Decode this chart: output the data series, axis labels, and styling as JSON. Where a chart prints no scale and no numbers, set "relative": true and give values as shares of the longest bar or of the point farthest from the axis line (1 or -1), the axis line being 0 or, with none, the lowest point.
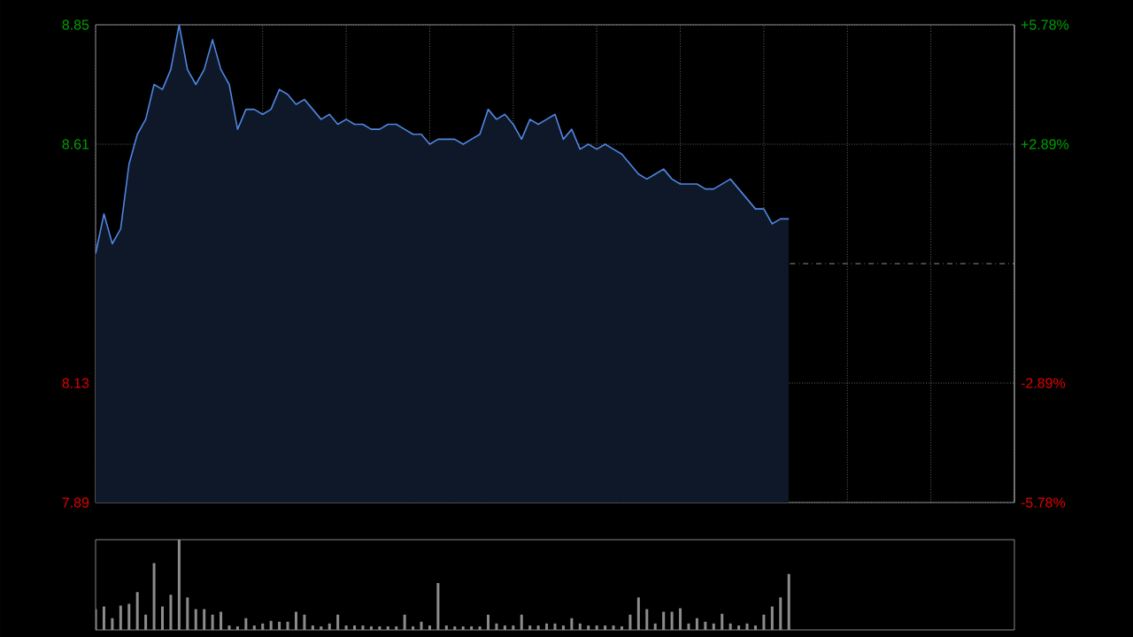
{
  "chart_data": [
    {
      "type": "area",
      "categories": [
        null,
        null,
        null,
        null,
        null,
        null,
        null,
        null,
        null,
        null,
        null,
        null,
        null,
        null,
        null,
        null,
        null,
        null,
        null,
        null,
        null,
        null,
        null,
        null,
        null,
        null,
        null,
        null,
        null,
        null,
        null,
        null,
        null,
        null,
        null,
        null,
        null,
        null,
        null,
        null,
        null,
        null,
        null,
        null,
        null,
        null,
        null,
        null,
        null,
        null,
        null,
        null,
        null,
        null,
        null,
        null,
        null,
        null,
        null,
        null,
        null,
        null,
        null,
        null,
        null,
        null,
        null,
        null,
        null,
        null,
        null,
        null,
        null,
        null,
        null,
        null,
        null,
        null,
        null,
        null,
        null,
        null,
        null,
        null,
        null,
        null,
        null,
        null,
        null,
        null,
        null,
        null,
        null,
        null,
        null,
        null,
        null,
        null,
        null,
        null,
        null,
        null,
        null,
        null,
        null,
        null,
        null,
        null,
        null,
        null,
        null
      ],
      "values": [
        8.39,
        8.47,
        8.41,
        8.44,
        8.57,
        8.63,
        8.66,
        8.73,
        8.72,
        8.76,
        8.85,
        8.76,
        8.73,
        8.76,
        8.82,
        8.76,
        8.73,
        8.64,
        8.68,
        8.68,
        8.67,
        8.68,
        8.72,
        8.71,
        8.69,
        8.7,
        8.68,
        8.66,
        8.67,
        8.65,
        8.66,
        8.65,
        8.65,
        8.64,
        8.64,
        8.65,
        8.65,
        8.64,
        8.63,
        8.63,
        8.61,
        8.62,
        8.62,
        8.62,
        8.61,
        8.62,
        8.63,
        8.68,
        8.66,
        8.67,
        8.65,
        8.62,
        8.66,
        8.65,
        8.66,
        8.67,
        8.62,
        8.64,
        8.6,
        8.61,
        8.6,
        8.61,
        8.6,
        8.59,
        8.57,
        8.55,
        8.54,
        8.55,
        8.56,
        8.54,
        8.53,
        8.53,
        8.53,
        8.52,
        8.52,
        8.53,
        8.54,
        8.52,
        8.5,
        8.48,
        8.48,
        8.45,
        8.46,
        8.46,
        null,
        null,
        null,
        null,
        null,
        null,
        null,
        null,
        null,
        null,
        null,
        null,
        null,
        null,
        null,
        null,
        null,
        null,
        null,
        null,
        null,
        null,
        null,
        null,
        null,
        null,
        null
      ],
      "color": "#4f86e0",
      "ylim": [
        7.89,
        8.85
      ],
      "yticks": [
        8.85,
        8.61,
        8.13,
        7.89
      ],
      "y2lim": [
        -5.78,
        5.78
      ],
      "y2ticks": [
        {
          "value": 5.78,
          "label": "+5.78%"
        },
        {
          "value": 2.89,
          "label": "+2.89%"
        },
        {
          "value": -2.89,
          "label": "-2.89%"
        },
        {
          "value": -5.78,
          "label": "-5.78%"
        }
      ],
      "ref_lines": [
        {
          "axis": "y",
          "value": 8.37,
          "color": "#b0b0b0",
          "line_style": "dashed"
        }
      ],
      "grid": true,
      "tick_labels": "y"
    },
    {
      "type": "bar",
      "relative": true,
      "categories": [
        null,
        null,
        null,
        null,
        null,
        null,
        null,
        null,
        null,
        null,
        null,
        null,
        null,
        null,
        null,
        null,
        null,
        null,
        null,
        null,
        null,
        null,
        null,
        null,
        null,
        null,
        null,
        null,
        null,
        null,
        null,
        null,
        null,
        null,
        null,
        null,
        null,
        null,
        null,
        null,
        null,
        null,
        null,
        null,
        null,
        null,
        null,
        null,
        null,
        null,
        null,
        null,
        null,
        null,
        null,
        null,
        null,
        null,
        null,
        null,
        null,
        null,
        null,
        null,
        null,
        null,
        null,
        null,
        null,
        null,
        null,
        null,
        null,
        null,
        null,
        null,
        null,
        null,
        null,
        null,
        null,
        null,
        null,
        null,
        null,
        null,
        null,
        null,
        null,
        null,
        null,
        null,
        null,
        null,
        null,
        null,
        null,
        null,
        null,
        null,
        null,
        null,
        null,
        null,
        null,
        null,
        null,
        null,
        null,
        null,
        null
      ],
      "values": [
        0.23,
        0.26,
        0.13,
        0.27,
        0.29,
        0.42,
        0.17,
        0.74,
        0.26,
        0.39,
        1,
        0.36,
        0.23,
        0.23,
        0.17,
        0.2,
        0.05,
        0.04,
        0.13,
        0.05,
        0.07,
        0.1,
        0.09,
        0.09,
        0.2,
        0.17,
        0.05,
        0.04,
        0.07,
        0.17,
        0.05,
        0.05,
        0.05,
        0.04,
        0.04,
        0.04,
        0.04,
        0.17,
        0.04,
        0.09,
        0.05,
        0.52,
        0.05,
        0.04,
        0.04,
        0.04,
        0.04,
        0.17,
        0.07,
        0.05,
        0.05,
        0.17,
        0.05,
        0.05,
        0.07,
        0.07,
        0.05,
        0.13,
        0.07,
        0.05,
        0.05,
        0.05,
        0.05,
        0.04,
        0.17,
        0.36,
        0.23,
        0.07,
        0.2,
        0.2,
        0.24,
        0.07,
        0.13,
        0.09,
        0.07,
        0.18,
        0.07,
        0.05,
        0.07,
        0.05,
        0.17,
        0.26,
        0.36,
        0.62,
        null,
        null,
        null,
        null,
        null,
        null,
        null,
        null,
        null,
        null,
        null,
        null,
        null,
        null,
        null,
        null,
        null,
        null,
        null,
        null,
        null,
        null,
        null,
        null,
        null,
        null,
        null
      ],
      "color": "#8c8c8c",
      "tick_labels": false
    }
  ]
}
